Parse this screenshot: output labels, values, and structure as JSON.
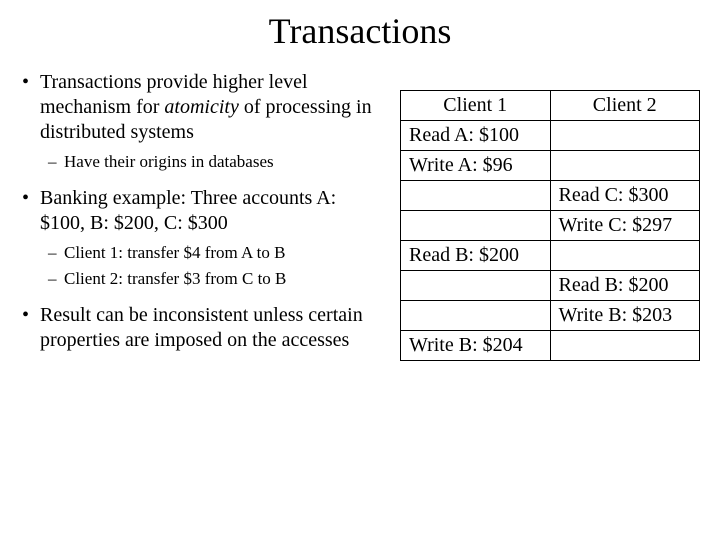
{
  "title": "Transactions",
  "bullets": {
    "b1": "Transactions provide higher level mechanism for ",
    "b1_italic": "atomicity",
    "b1_cont": " of processing in distributed systems",
    "b1_sub1": "Have their origins in databases",
    "b2": "Banking example: Three accounts A: $100, B: $200, C: $300",
    "b2_sub1": "Client 1: transfer $4 from A to B",
    "b2_sub2": "Client 2: transfer $3 from C to B",
    "b3": "Result can be inconsistent unless certain properties are imposed on the accesses"
  },
  "table": {
    "header1": "Client 1",
    "header2": "Client 2",
    "rows": [
      {
        "c1": "Read A: $100",
        "c2": ""
      },
      {
        "c1": "Write A: $96",
        "c2": ""
      },
      {
        "c1": "",
        "c2": "Read C: $300"
      },
      {
        "c1": "",
        "c2": "Write C: $297"
      },
      {
        "c1": "Read B: $200",
        "c2": ""
      },
      {
        "c1": "",
        "c2": "Read B: $200"
      },
      {
        "c1": "",
        "c2": "Write B: $203"
      },
      {
        "c1": "Write B: $204",
        "c2": ""
      }
    ]
  },
  "colors": {
    "text": "#000000",
    "background": "#ffffff",
    "border": "#000000"
  },
  "fonts": {
    "family": "Times New Roman",
    "title_size_pt": 28,
    "body_size_pt": 16,
    "sub_size_pt": 13,
    "table_size_pt": 16
  }
}
